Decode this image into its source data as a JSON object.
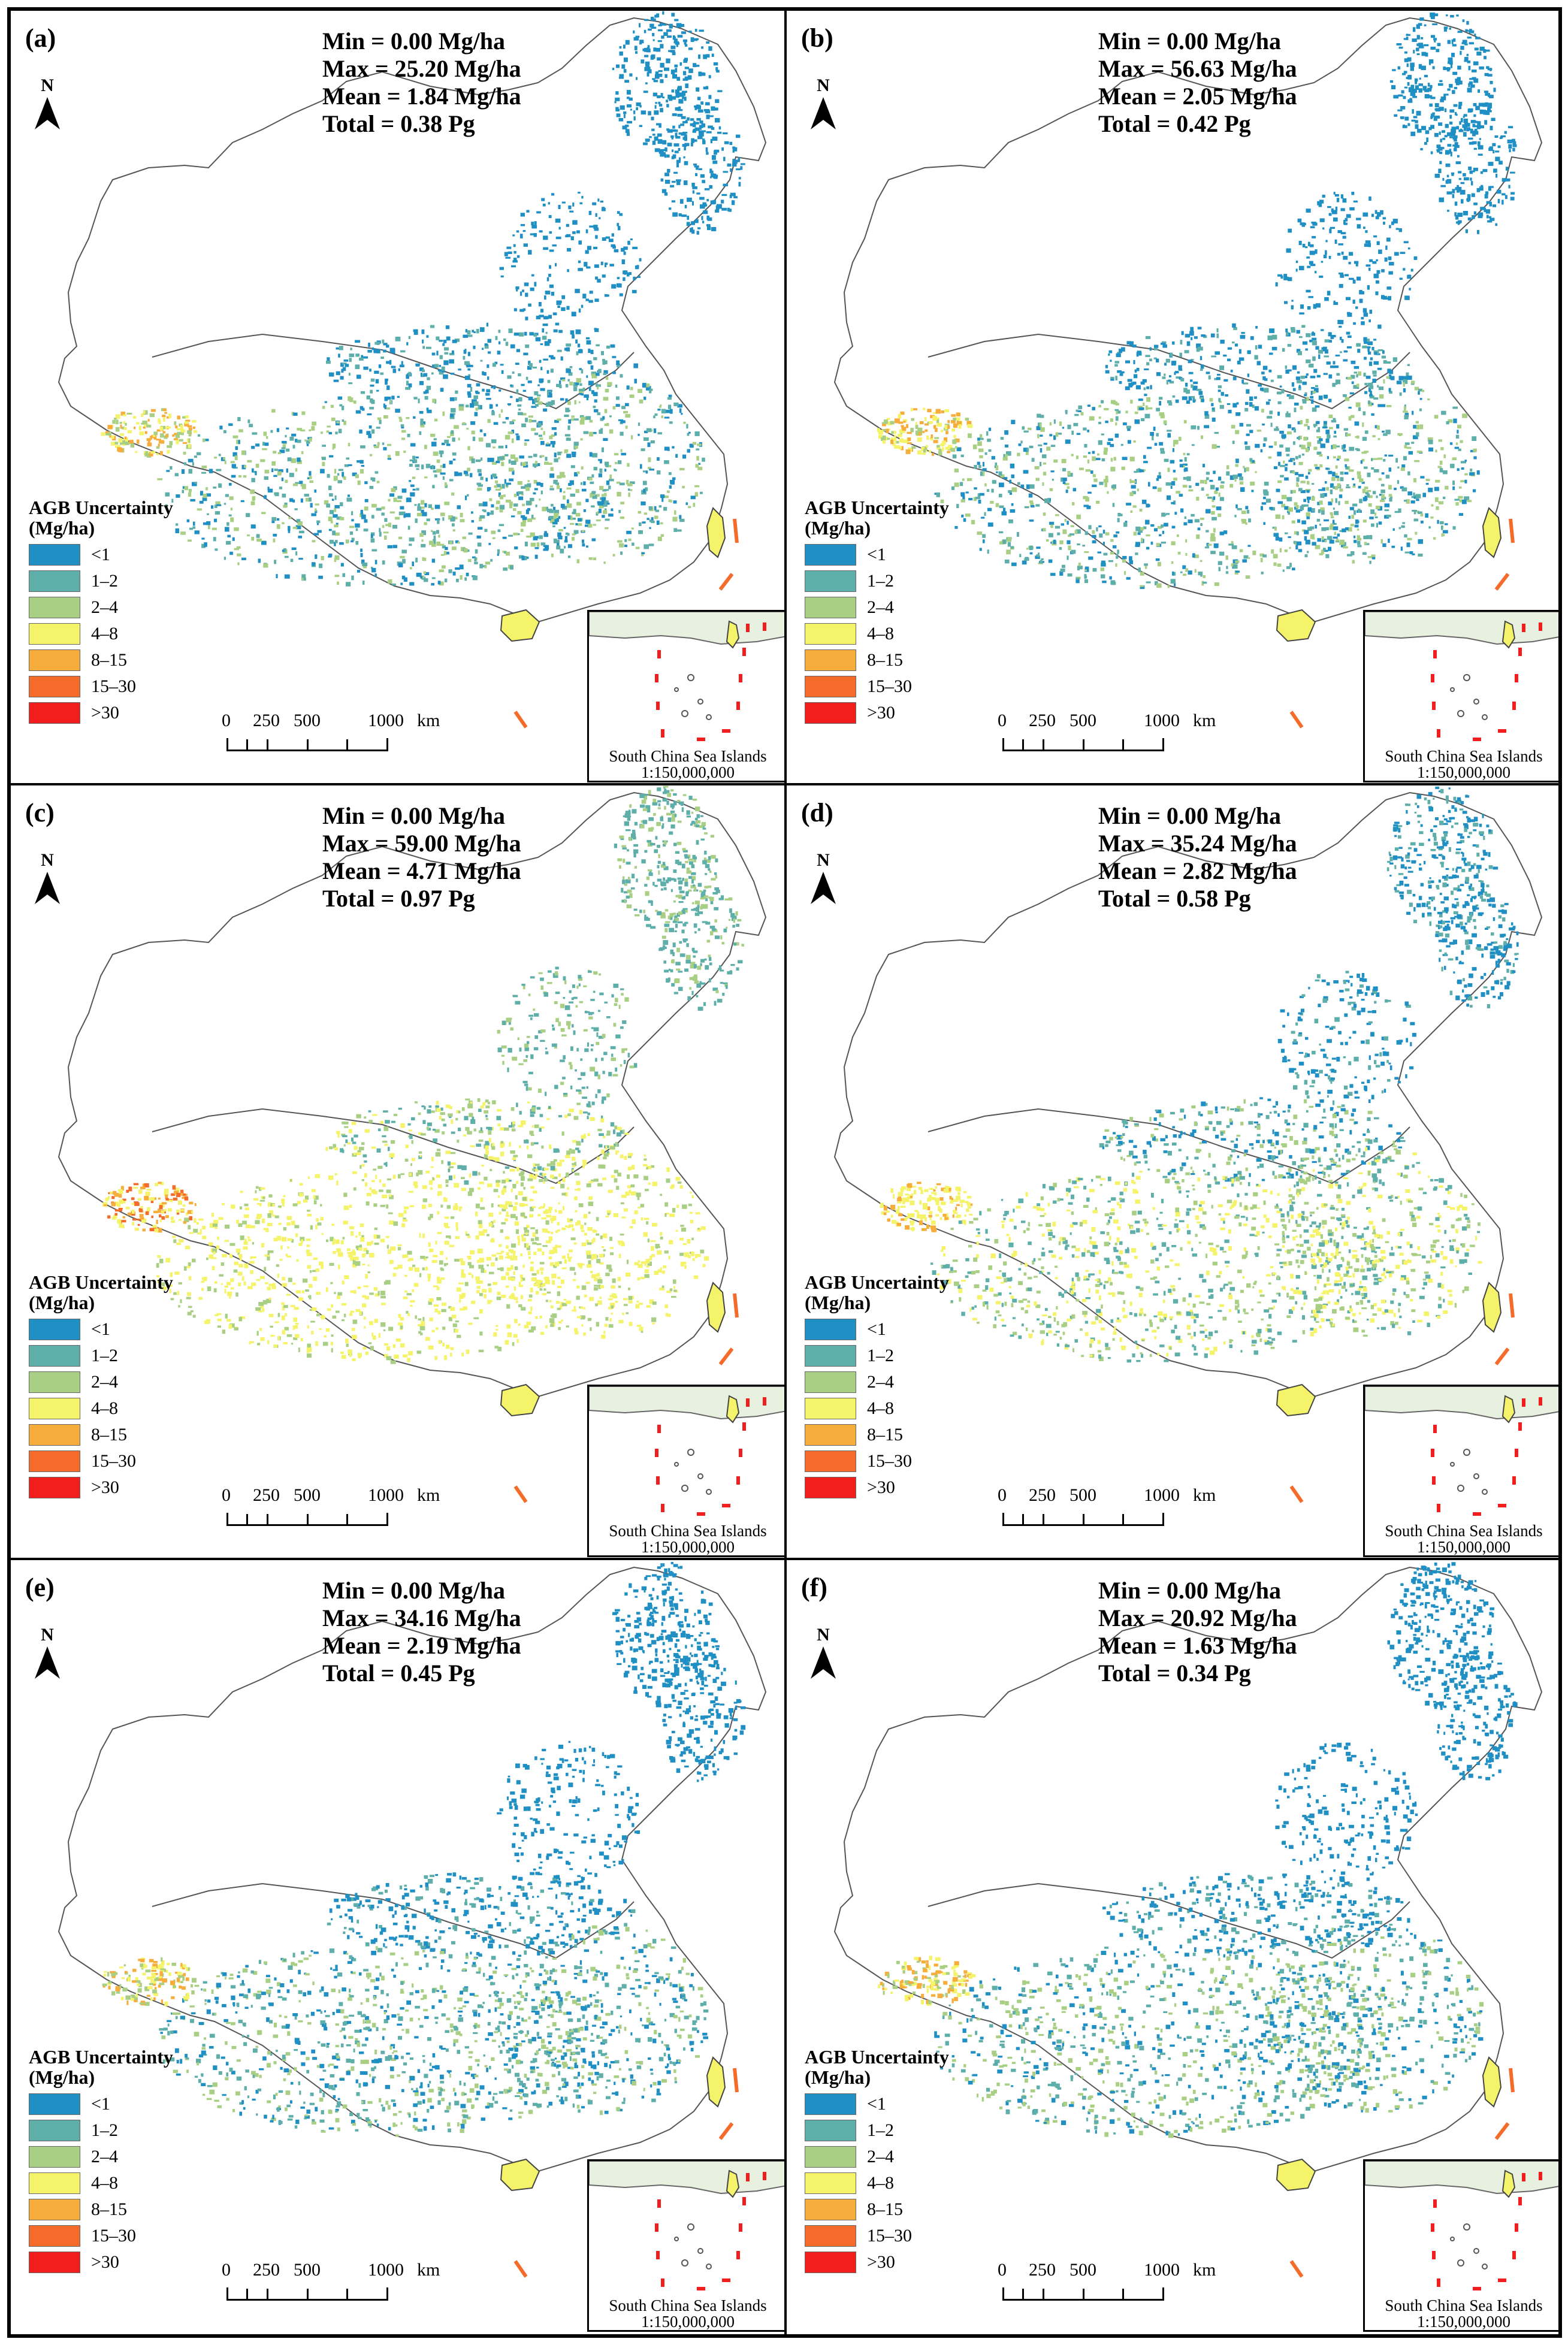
{
  "figure": {
    "legend_title_line1": "AGB Uncertainty",
    "legend_title_line2": "(Mg/ha)",
    "north_label": "N",
    "scale_labels": [
      "0",
      "250",
      "500",
      "1000",
      "km"
    ],
    "inset_caption_line1": "South China Sea Islands",
    "inset_caption_line2": "1:150,000,000",
    "legend_items": [
      {
        "label": "<1",
        "color": "#1f8fc4"
      },
      {
        "label": "1–2",
        "color": "#5eafaa"
      },
      {
        "label": "2–4",
        "color": "#a9cf84"
      },
      {
        "label": "4–8",
        "color": "#f4f36a"
      },
      {
        "label": "8–15",
        "color": "#f7ad3c"
      },
      {
        "label": "15–30",
        "color": "#f56b2a"
      },
      {
        "label": ">30",
        "color": "#f21d1d"
      }
    ]
  },
  "panels": [
    {
      "label": "(a)",
      "min": "Min = 0.00 Mg/ha",
      "max": "Max = 25.20 Mg/ha",
      "mean": "Mean = 1.84 Mg/ha",
      "total": "Total =  0.38 Pg",
      "palette": [
        "#1f8fc4",
        "#1f8fc4",
        "#5eafaa",
        "#a9cf84",
        "#f4f36a",
        "#f7ad3c"
      ]
    },
    {
      "label": "(b)",
      "min": "Min = 0.00 Mg/ha",
      "max": "Max = 56.63 Mg/ha",
      "mean": "Mean = 2.05 Mg/ha",
      "total": "Total = 0.42 Pg",
      "palette": [
        "#1f8fc4",
        "#1f8fc4",
        "#5eafaa",
        "#a9cf84",
        "#f4f36a",
        "#f7ad3c"
      ]
    },
    {
      "label": "(c)",
      "min": "Min = 0.00 Mg/ha",
      "max": "Max = 59.00 Mg/ha",
      "mean": "Mean = 4.71 Mg/ha",
      "total": "Total = 0.97 Pg",
      "palette": [
        "#5eafaa",
        "#a9cf84",
        "#f4f36a",
        "#f4f36a",
        "#f7ad3c",
        "#f56b2a"
      ]
    },
    {
      "label": "(d)",
      "min": "Min = 0.00 Mg/ha",
      "max": "Max = 35.24 Mg/ha",
      "mean": "Mean = 2.82 Mg/ha",
      "total": "Total = 0.58 Pg",
      "palette": [
        "#1f8fc4",
        "#5eafaa",
        "#a9cf84",
        "#f4f36a",
        "#f4f36a",
        "#f7ad3c"
      ]
    },
    {
      "label": "(e)",
      "min": "Min = 0.00 Mg/ha",
      "max": "Max = 34.16 Mg/ha",
      "mean": "Mean = 2.19 Mg/ha",
      "total": "Total = 0.45 Pg",
      "palette": [
        "#1f8fc4",
        "#1f8fc4",
        "#5eafaa",
        "#a9cf84",
        "#f4f36a",
        "#f7ad3c"
      ]
    },
    {
      "label": "(f)",
      "min": "Min = 0.00 Mg/ha",
      "max": "Max = 20.92 Mg/ha",
      "mean": "Mean = 1.63 Mg/ha",
      "total": "Total = 0.34 Pg",
      "palette": [
        "#1f8fc4",
        "#1f8fc4",
        "#5eafaa",
        "#a9cf84",
        "#f4f36a",
        "#f7ad3c"
      ]
    }
  ]
}
